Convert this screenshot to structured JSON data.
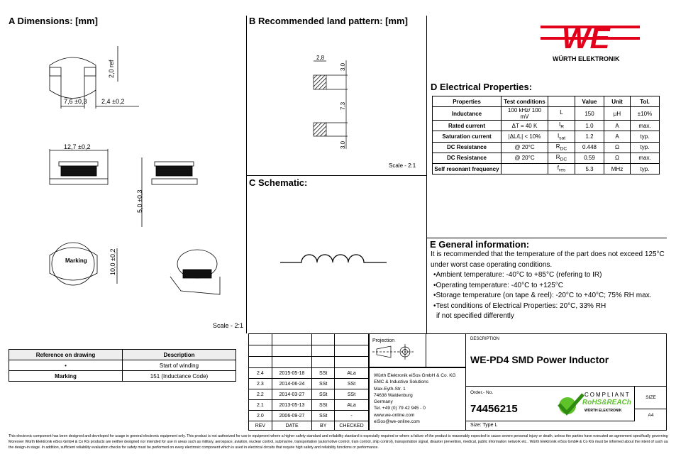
{
  "sections": {
    "dimensions": {
      "title": "A Dimensions: [mm]",
      "scale": "Scale - 2:1",
      "dims": [
        "2,0 ref",
        "7,6 ±0,3",
        "2,4 ±0,2",
        "12,7 ±0,2",
        "5,0 ±0,3",
        "10,0 ±0,2"
      ],
      "marking_label": "Marking"
    },
    "land_pattern": {
      "title": "B Recommended land pattern: [mm]",
      "scale": "Scale - 2:1",
      "dims": [
        "2,8",
        "3,0",
        "7,3",
        "3,0"
      ]
    },
    "schematic": {
      "title": "C Schematic:"
    },
    "electrical": {
      "title": "D Electrical Properties:",
      "headers": [
        "Properties",
        "Test conditions",
        "",
        "Value",
        "Unit",
        "Tol."
      ],
      "rows": [
        {
          "prop": "Inductance",
          "cond": "100 kHz/ 100 mV",
          "sym": "L",
          "sub": "",
          "value": "150",
          "unit": "µH",
          "tol": "±10%"
        },
        {
          "prop": "Rated current",
          "cond": "ΔT = 40 K",
          "sym": "I",
          "sub": "R",
          "value": "1.0",
          "unit": "A",
          "tol": "max."
        },
        {
          "prop": "Saturation current",
          "cond": "|ΔL/L| < 10%",
          "sym": "I",
          "sub": "sat",
          "value": "1.2",
          "unit": "A",
          "tol": "typ."
        },
        {
          "prop": "DC Resistance",
          "cond": "@ 20°C",
          "sym": "R",
          "sub": "DC",
          "value": "0.448",
          "unit": "Ω",
          "tol": "typ."
        },
        {
          "prop": "DC Resistance",
          "cond": "@ 20°C",
          "sym": "R",
          "sub": "DC",
          "value": "0.59",
          "unit": "Ω",
          "tol": "max."
        },
        {
          "prop": "Self resonant frequency",
          "cond": "",
          "sym": "f",
          "sub": "res",
          "value": "5.3",
          "unit": "MHz",
          "tol": "typ."
        }
      ]
    },
    "general": {
      "title": "E General information:",
      "lines": [
        "It is recommended that the temperature of the part does not exceed 125°C",
        "under worst case operating conditions.",
        "•Ambient temperature: -40°C to +85°C (refering to IR)",
        "•Operating temperature: -40°C to +125°C",
        "•Storage temperature (on tape & reel): -20°C to +40°C; 75% RH max.",
        "•Test conditions of Electrical Properties: 20°C, 33% RH",
        "  if not specified differently"
      ]
    }
  },
  "logo": {
    "text": "WÜRTH ELEKTRONIK",
    "color": "#e2001a"
  },
  "reference": {
    "headers": [
      "Reference on drawing",
      "Description"
    ],
    "rows": [
      [
        "•",
        "Start of winding"
      ],
      [
        "Marking",
        "151 (Inductance Code)"
      ]
    ]
  },
  "revisions": {
    "headers": [
      "REV",
      "DATE",
      "BY",
      "CHECKED"
    ],
    "rows": [
      [
        "2.4",
        "2015-05-18",
        "SSt",
        "ALa"
      ],
      [
        "2.3",
        "2014-06-24",
        "SSt",
        "SSt"
      ],
      [
        "2.2",
        "2014-03-27",
        "SSt",
        "SSt"
      ],
      [
        "2.1",
        "2013-05-13",
        "SSt",
        "ALa"
      ],
      [
        "2.0",
        "2006-09-27",
        "SSt",
        "-"
      ]
    ]
  },
  "projection_label": "Projection",
  "company": [
    "Würth Elektronik eiSos GmbH & Co. KG",
    "EMC & Inductive Solutions",
    "Max-Eyth-Str. 1",
    "74638 Waldenburg",
    "Germany",
    "Tel. +49 (0) 79 42 945 - 0",
    "www.we-online.com",
    "eiSos@we-online.com"
  ],
  "title_block": {
    "description_label": "DESCRIPTION",
    "description": "WE-PD4 SMD Power Inductor",
    "order_label": "Order.- No.",
    "order_no": "74456215",
    "size_label": "SIZE",
    "size": "A4",
    "size_type": "Size: Type L",
    "rohs": {
      "line1": "COMPLIANT",
      "line2": "RoHS&REACh",
      "line3": "WÜRTH ELEKTRONIK",
      "color": "#5ec22b"
    }
  },
  "disclaimer": [
    "This electronic component has been designed and developed for usage in general electronic equipment only. This product is not authorized for use in equipment where a higher safety standard and reliability standard is especially required or where a failure of the product is reasonably expected to cause severe personal injury or death, unless the parties have executed an agreement specifically governing such use.",
    "Moreover Würth Elektronik eiSos GmbH & Co KG products are neither designed nor intended for use in areas such as military, aerospace, aviation, nuclear control, submarine, transportation (automotive control, train control, ship control), transportation signal, disaster prevention, medical, public information network etc.. Würth Elektronik eiSos GmbH & Co KG must be informed about the intent of such usage before",
    "the design-in stage. In addition, sufficient reliability evaluation checks for safety must be performed on every electronic component which is used in electrical circuits that require high safety and reliability functions or performance."
  ]
}
